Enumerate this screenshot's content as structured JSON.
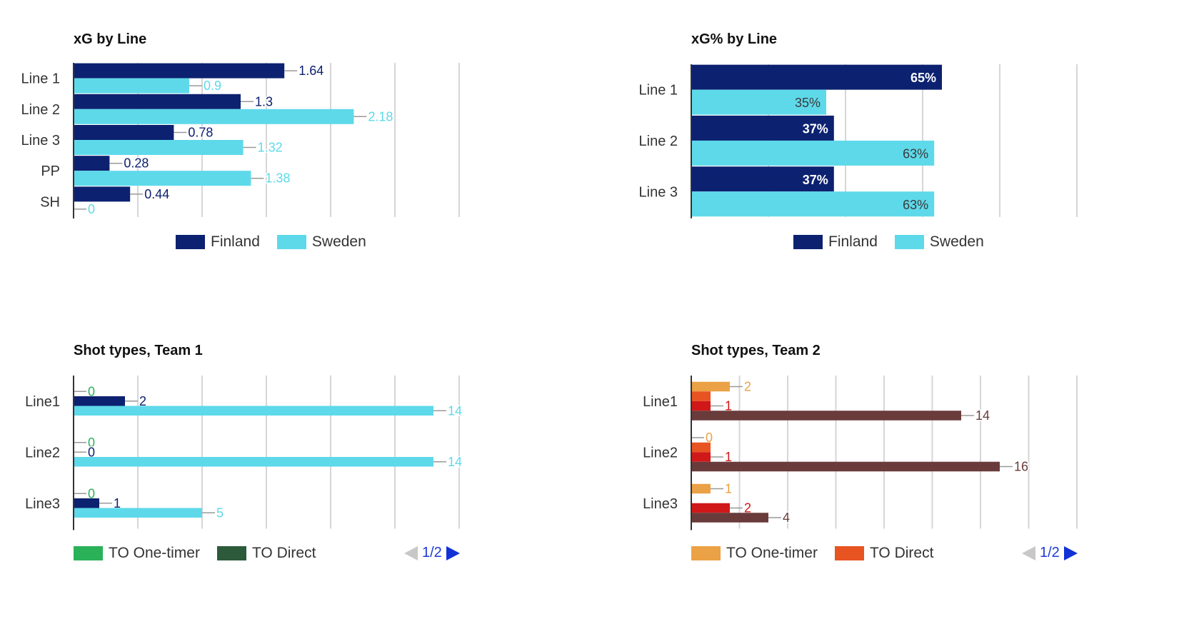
{
  "charts": [
    {
      "title": "xG by Line",
      "legend": [
        {
          "label": "Finland",
          "color": "#0c2170"
        },
        {
          "label": "Sweden",
          "color": "#5ed9ea"
        }
      ]
    },
    {
      "title": "xG% by Line",
      "legend": [
        {
          "label": "Finland",
          "color": "#0c2170"
        },
        {
          "label": "Sweden",
          "color": "#5ed9ea"
        }
      ]
    },
    {
      "title": "Shot types, Team 1",
      "legend": [
        {
          "label": "TO One-timer",
          "color": "#2bb158"
        },
        {
          "label": "TO Direct",
          "color": "#2c5a3a"
        }
      ],
      "pager": "1/2"
    },
    {
      "title": "Shot types, Team 2",
      "legend": [
        {
          "label": "TO One-timer",
          "color": "#eba145"
        },
        {
          "label": "TO Direct",
          "color": "#e85322"
        }
      ],
      "pager": "1/2"
    }
  ],
  "chart_data": [
    {
      "type": "bar",
      "orientation": "horizontal",
      "title": "xG by Line",
      "categories": [
        "Line 1",
        "Line 2",
        "Line 3",
        "PP",
        "SH"
      ],
      "xlim": [
        0,
        3
      ],
      "grid": true,
      "legend_position": "bottom",
      "label_style": "outside",
      "series": [
        {
          "name": "Finland",
          "color": "#0c2170",
          "label_color": "#0c2170",
          "values": [
            1.64,
            1.3,
            0.78,
            0.28,
            0.44
          ],
          "labels": [
            "1.64",
            "1.3",
            "0.78",
            "0.28",
            "0.44"
          ]
        },
        {
          "name": "Sweden",
          "color": "#5ed9ea",
          "label_color": "#5ed9ea",
          "values": [
            0.9,
            2.18,
            1.32,
            1.38,
            0
          ],
          "labels": [
            "0.9",
            "2.18",
            "1.32",
            "1.38",
            "0"
          ]
        }
      ]
    },
    {
      "type": "bar",
      "orientation": "horizontal",
      "title": "xG% by Line",
      "categories": [
        "Line 1",
        "Line 2",
        "Line 3"
      ],
      "xlim": [
        0,
        100
      ],
      "grid": true,
      "legend_position": "bottom",
      "label_style": "inside",
      "series": [
        {
          "name": "Finland",
          "color": "#0c2170",
          "label_color": "#ffffff",
          "values": [
            65,
            37,
            37
          ],
          "labels": [
            "65%",
            "37%",
            "37%"
          ]
        },
        {
          "name": "Sweden",
          "color": "#5ed9ea",
          "label_color": "#3a3a3a",
          "values": [
            35,
            63,
            63
          ],
          "labels": [
            "35%",
            "63%",
            "63%"
          ]
        }
      ]
    },
    {
      "type": "bar",
      "orientation": "horizontal",
      "title": "Shot types, Team 1",
      "categories": [
        "Line1",
        "Line2",
        "Line3"
      ],
      "xlim": [
        0,
        15
      ],
      "grid": true,
      "legend_position": "bottom",
      "label_style": "outside",
      "series": [
        {
          "name": "TO One-timer",
          "color": "#2bb158",
          "label_color": "#2bb158",
          "values": [
            0,
            0,
            0
          ],
          "labels": [
            "0",
            "0",
            "0"
          ]
        },
        {
          "name": "",
          "color": "#0c2170",
          "label_color": "#0c2170",
          "values": [
            2,
            0,
            1
          ],
          "labels": [
            "2",
            "0",
            "1"
          ]
        },
        {
          "name": "",
          "color": "#5ed9ea",
          "label_color": "#5ed9ea",
          "values": [
            14,
            14,
            5
          ],
          "labels": [
            "14",
            "14",
            "5"
          ]
        }
      ]
    },
    {
      "type": "bar",
      "orientation": "horizontal",
      "title": "Shot types, Team 2",
      "categories": [
        "Line1",
        "Line2",
        "Line3"
      ],
      "xlim": [
        0,
        20
      ],
      "grid": true,
      "legend_position": "bottom",
      "label_style": "outside",
      "series": [
        {
          "name": "TO One-timer",
          "color": "#eba145",
          "label_color": "#eba145",
          "values": [
            2,
            0,
            1
          ],
          "labels": [
            "2",
            "0",
            "1"
          ]
        },
        {
          "name": "TO Direct",
          "color": "#e85322",
          "label_color": "#e85322",
          "values": [
            1,
            1,
            0
          ],
          "labels": [],
          "hidden_labels": true
        },
        {
          "name": "",
          "color": "#d01818",
          "label_color": "#d01818",
          "values": [
            1,
            1,
            2
          ],
          "labels": [
            "1",
            "1",
            "2"
          ]
        },
        {
          "name": "",
          "color": "#6a3b3b",
          "label_color": "#6a3b3b",
          "values": [
            14,
            16,
            4
          ],
          "labels": [
            "14",
            "16",
            "4"
          ]
        }
      ]
    }
  ]
}
